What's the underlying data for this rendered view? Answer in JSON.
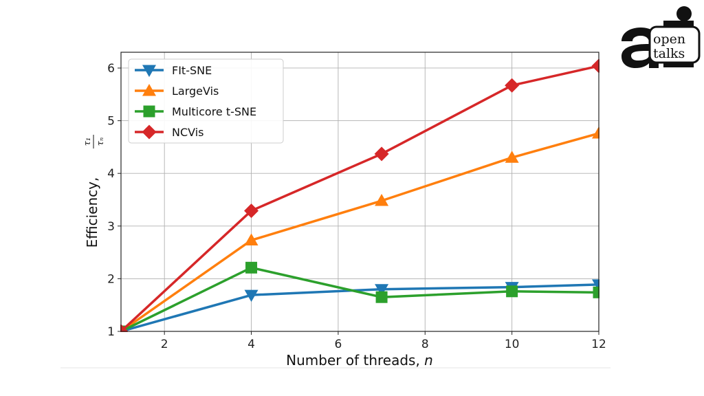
{
  "logo": {
    "line1": "open",
    "line2": "talks",
    "mark": "ai-logo-icon"
  },
  "chart_data": {
    "type": "line",
    "xlabel_main": "Number of threads, ",
    "xlabel_var": "n",
    "ylabel_main": "Efficiency, ",
    "ylabel_frac_num": "τ₁",
    "ylabel_frac_den": "τₙ",
    "xlim": [
      1,
      12
    ],
    "ylim": [
      1,
      6.3
    ],
    "xticks": [
      2,
      4,
      6,
      8,
      10,
      12
    ],
    "yticks": [
      1,
      2,
      3,
      4,
      5,
      6
    ],
    "grid": true,
    "legend_position": "top-left",
    "series": [
      {
        "name": "FIt-SNE",
        "color": "#1f77b4",
        "marker": "triangle-down",
        "x": [
          1,
          4,
          7,
          10,
          12
        ],
        "y": [
          1.0,
          1.69,
          1.8,
          1.84,
          1.89
        ]
      },
      {
        "name": "LargeVis",
        "color": "#ff7f0e",
        "marker": "triangle-up",
        "x": [
          1,
          4,
          7,
          10,
          12
        ],
        "y": [
          1.0,
          2.73,
          3.48,
          4.3,
          4.76
        ]
      },
      {
        "name": "Multicore t-SNE",
        "color": "#2ca02c",
        "marker": "square",
        "x": [
          1,
          4,
          7,
          10,
          12
        ],
        "y": [
          1.0,
          2.21,
          1.65,
          1.76,
          1.74
        ]
      },
      {
        "name": "NCVis",
        "color": "#d62728",
        "marker": "diamond",
        "x": [
          1,
          4,
          7,
          10,
          12
        ],
        "y": [
          1.0,
          3.29,
          4.37,
          5.67,
          6.04
        ]
      }
    ]
  }
}
